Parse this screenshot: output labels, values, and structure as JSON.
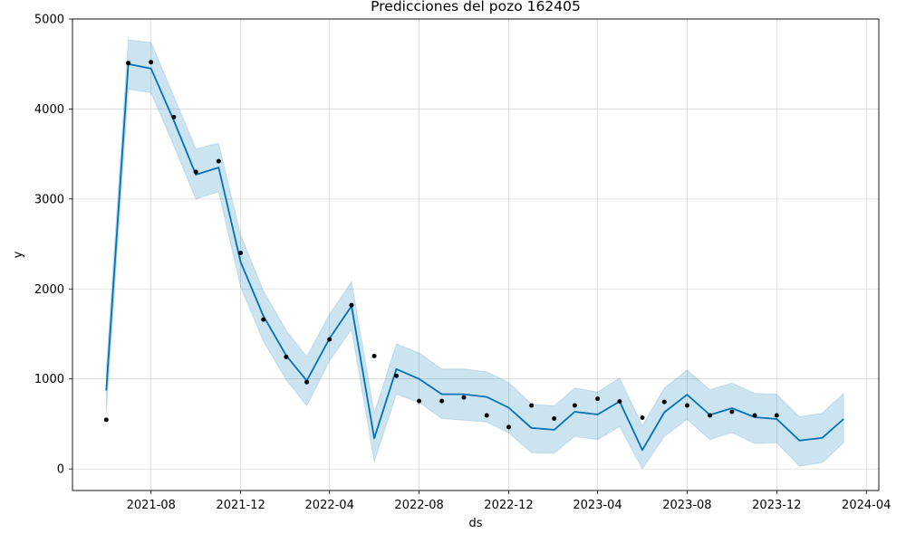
{
  "chart_data": {
    "type": "line",
    "title": "Predicciones del pozo 162405",
    "xlabel": "ds",
    "ylabel": "y",
    "xlim": [
      "2021-04-16",
      "2024-04-18"
    ],
    "ylim": [
      -240,
      5000
    ],
    "x_ticks": [
      "2021-08",
      "2021-12",
      "2022-04",
      "2022-08",
      "2022-12",
      "2023-04",
      "2023-08",
      "2023-12",
      "2024-04"
    ],
    "y_ticks": [
      0,
      1000,
      2000,
      3000,
      4000,
      5000
    ],
    "grid": true,
    "colors": {
      "forecast": "#0072B2",
      "band": "#0072B2",
      "observed": "#000000",
      "grid": "#d9d9d9"
    },
    "observed": {
      "x": [
        "2021-06-01",
        "2021-07-01",
        "2021-08-01",
        "2021-09-01",
        "2021-10-01",
        "2021-11-01",
        "2021-12-01",
        "2022-01-01",
        "2022-02-01",
        "2022-03-01",
        "2022-04-01",
        "2022-05-01",
        "2022-06-01",
        "2022-07-01",
        "2022-08-01",
        "2022-09-01",
        "2022-10-01",
        "2022-11-01",
        "2022-12-01",
        "2023-01-01",
        "2023-02-01",
        "2023-03-01",
        "2023-04-01",
        "2023-05-01",
        "2023-06-01",
        "2023-07-01",
        "2023-08-01",
        "2023-09-01",
        "2023-10-01",
        "2023-11-01",
        "2023-12-01"
      ],
      "y": [
        545,
        4510,
        4520,
        3910,
        3300,
        3420,
        2400,
        1660,
        1245,
        965,
        1440,
        1820,
        1255,
        1035,
        755,
        755,
        795,
        595,
        465,
        705,
        560,
        705,
        780,
        750,
        570,
        745,
        705,
        595,
        635,
        595,
        595
      ]
    },
    "forecast": {
      "x": [
        "2021-06-01",
        "2021-07-01",
        "2021-08-01",
        "2021-09-01",
        "2021-10-01",
        "2021-11-01",
        "2021-12-01",
        "2022-01-01",
        "2022-02-01",
        "2022-03-01",
        "2022-04-01",
        "2022-05-01",
        "2022-06-01",
        "2022-07-01",
        "2022-08-01",
        "2022-09-01",
        "2022-10-01",
        "2022-11-01",
        "2022-12-01",
        "2023-01-01",
        "2023-02-01",
        "2023-03-01",
        "2023-04-01",
        "2023-05-01",
        "2023-06-01",
        "2023-07-01",
        "2023-08-01",
        "2023-09-01",
        "2023-10-01",
        "2023-11-01",
        "2023-12-01",
        "2024-01-01",
        "2024-02-01",
        "2024-03-01"
      ],
      "yhat": [
        870,
        4500,
        4450,
        3870,
        3270,
        3350,
        2300,
        1700,
        1260,
        980,
        1450,
        1810,
        340,
        1110,
        1000,
        830,
        830,
        800,
        680,
        455,
        435,
        635,
        605,
        750,
        210,
        630,
        825,
        600,
        675,
        575,
        555,
        315,
        345,
        555
      ],
      "yhat_lower": [
        620,
        4220,
        4180,
        3590,
        3000,
        3080,
        2020,
        1420,
        990,
        700,
        1200,
        1550,
        80,
        830,
        740,
        560,
        540,
        520,
        400,
        180,
        175,
        360,
        325,
        470,
        0,
        360,
        550,
        325,
        405,
        280,
        290,
        30,
        70,
        290
      ],
      "yhat_upper": [
        1130,
        4770,
        4740,
        4140,
        3560,
        3620,
        2600,
        1980,
        1540,
        1250,
        1720,
        2080,
        620,
        1390,
        1290,
        1110,
        1110,
        1080,
        960,
        720,
        700,
        900,
        855,
        1010,
        480,
        900,
        1100,
        880,
        955,
        840,
        830,
        580,
        620,
        840
      ]
    }
  }
}
